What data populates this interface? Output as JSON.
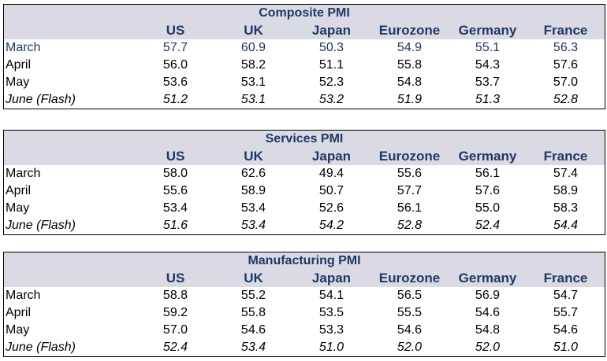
{
  "columns": [
    "US",
    "UK",
    "Japan",
    "Eurozone",
    "Germany",
    "France"
  ],
  "tables": [
    {
      "title": "Composite PMI",
      "rows": [
        {
          "label": "March",
          "values": [
            "57.7",
            "60.9",
            "50.3",
            "54.9",
            "55.1",
            "56.3"
          ]
        },
        {
          "label": "April",
          "values": [
            "56.0",
            "58.2",
            "51.1",
            "55.8",
            "54.3",
            "57.6"
          ]
        },
        {
          "label": "May",
          "values": [
            "53.6",
            "53.1",
            "52.3",
            "54.8",
            "53.7",
            "57.0"
          ]
        },
        {
          "label": "June (Flash)",
          "values": [
            "51.2",
            "53.1",
            "53.2",
            "51.9",
            "51.3",
            "52.8"
          ]
        }
      ]
    },
    {
      "title": "Services PMI",
      "rows": [
        {
          "label": "March",
          "values": [
            "58.0",
            "62.6",
            "49.4",
            "55.6",
            "56.1",
            "57.4"
          ]
        },
        {
          "label": "April",
          "values": [
            "55.6",
            "58.9",
            "50.7",
            "57.7",
            "57.6",
            "58.9"
          ]
        },
        {
          "label": "May",
          "values": [
            "53.4",
            "53.4",
            "52.6",
            "56.1",
            "55.0",
            "58.3"
          ]
        },
        {
          "label": "June (Flash)",
          "values": [
            "51.6",
            "53.4",
            "54.2",
            "52.8",
            "52.4",
            "54.4"
          ]
        }
      ]
    },
    {
      "title": "Manufacturing PMI",
      "rows": [
        {
          "label": "March",
          "values": [
            "58.8",
            "55.2",
            "54.1",
            "56.5",
            "56.9",
            "54.7"
          ]
        },
        {
          "label": "April",
          "values": [
            "59.2",
            "55.8",
            "53.5",
            "55.5",
            "54.6",
            "55.7"
          ]
        },
        {
          "label": "May",
          "values": [
            "57.0",
            "54.6",
            "53.3",
            "54.6",
            "54.8",
            "54.6"
          ]
        },
        {
          "label": "June (Flash)",
          "values": [
            "52.4",
            "53.4",
            "51.0",
            "52.0",
            "52.0",
            "51.0"
          ]
        }
      ]
    }
  ]
}
